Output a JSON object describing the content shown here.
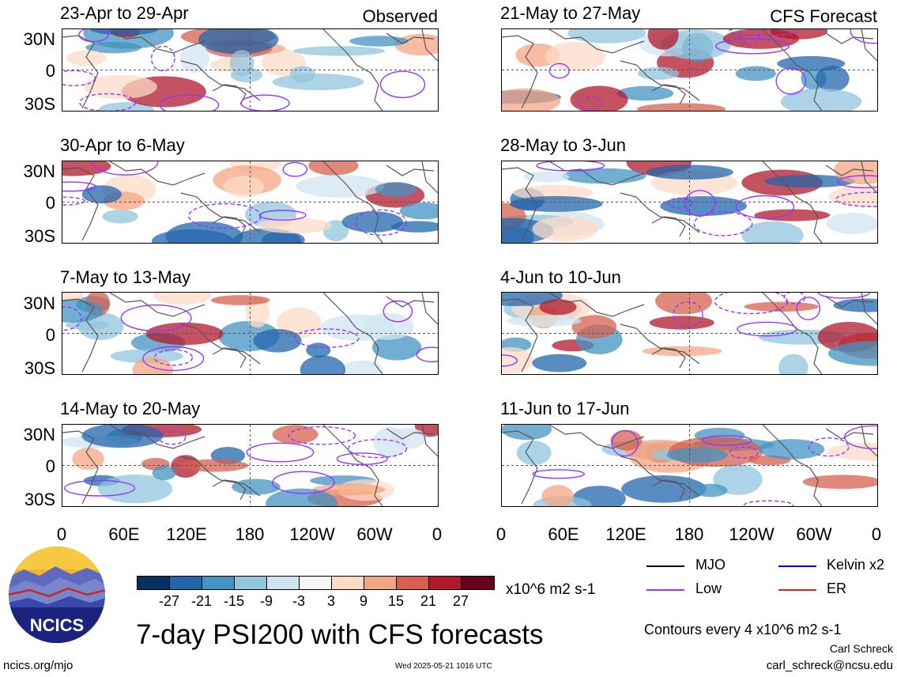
{
  "observed_tag": "Observed",
  "forecast_tag": "CFS Forecast",
  "panels_left": [
    {
      "title": "23-Apr to 29-Apr"
    },
    {
      "title": "30-Apr to 6-May"
    },
    {
      "title": "7-May to 13-May"
    },
    {
      "title": "14-May to 20-May"
    }
  ],
  "panels_right": [
    {
      "title": "21-May to 27-May"
    },
    {
      "title": "28-May to 3-Jun"
    },
    {
      "title": "4-Jun to 10-Jun"
    },
    {
      "title": "11-Jun to 17-Jun"
    }
  ],
  "lat_labels": [
    "30N",
    "0",
    "30S"
  ],
  "lon_labels": [
    "0",
    "60E",
    "120E",
    "180",
    "120W",
    "60W",
    "0"
  ],
  "colorbar": {
    "colors": [
      "#053061",
      "#2166ac",
      "#4393c3",
      "#92c5de",
      "#d1e5f0",
      "#f7f7f7",
      "#fddbc7",
      "#f4a582",
      "#d6604d",
      "#b2182b",
      "#67001f"
    ],
    "labels": [
      "-27",
      "-21",
      "-15",
      "-9",
      "-3",
      "3",
      "9",
      "15",
      "21",
      "27"
    ],
    "units": "x10^6 m2 s-1"
  },
  "legend": {
    "mjo": "MJO",
    "kelvin": "Kelvin x2",
    "low": "Low",
    "er": "ER",
    "colors": {
      "mjo": "#000000",
      "kelvin": "#0000ff",
      "low": "#9933ff",
      "er": "#dd2222"
    }
  },
  "logo_text": "NCICS",
  "main_title": "7-day PSI200 with CFS forecasts",
  "contour_note": "Contours every 4 x10^6 m2 s-1",
  "author": "Carl Schreck",
  "email": "carl_schreck@ncsu.edu",
  "website": "ncics.org/mjo",
  "timestamp": "Wed 2025-05-21 1016 UTC"
}
